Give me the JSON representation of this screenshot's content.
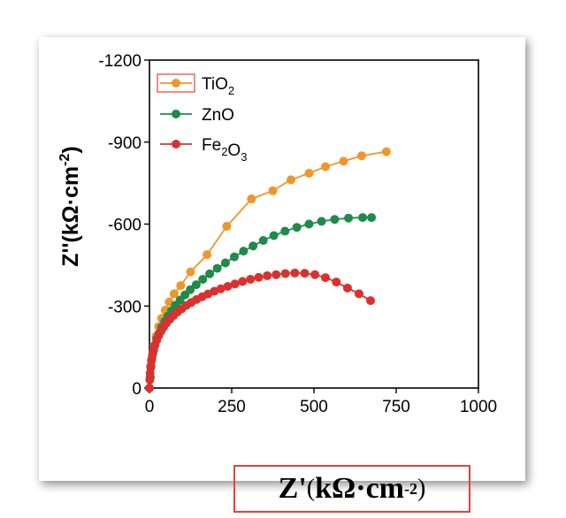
{
  "chart_data": {
    "type": "scatter",
    "title": "",
    "xlabel": "Z'(kΩ·cm⁻²)",
    "ylabel": "Z''(kΩ·cm⁻²)",
    "xlim": [
      0,
      1000
    ],
    "ylim": [
      0,
      -1200
    ],
    "x_ticks": [
      "0",
      "250",
      "500",
      "750",
      "1000"
    ],
    "y_ticks": [
      "0",
      "-300",
      "-600",
      "-900",
      "-1200"
    ],
    "grid": false,
    "legend_position": "top-left",
    "series": [
      {
        "name": "TiO2",
        "color": "#f0962a",
        "x": [
          0,
          3,
          5,
          9,
          14,
          20,
          28,
          37,
          48,
          60,
          75,
          95,
          125,
          175,
          235,
          310,
          375,
          430,
          485,
          535,
          590,
          645,
          720
        ],
        "y": [
          0,
          -40,
          -80,
          -120,
          -155,
          -190,
          -225,
          -255,
          -285,
          -315,
          -345,
          -375,
          -425,
          -488,
          -592,
          -692,
          -722,
          -762,
          -786,
          -810,
          -830,
          -850,
          -865
        ]
      },
      {
        "name": "ZnO",
        "color": "#1f8a4a",
        "x": [
          0,
          2,
          4,
          7,
          11,
          16,
          22,
          29,
          37,
          46,
          56,
          67,
          79,
          93,
          108,
          124,
          142,
          162,
          183,
          206,
          231,
          258,
          286,
          315,
          346,
          378,
          412,
          448,
          485,
          523,
          563,
          605,
          648,
          675
        ],
        "y": [
          0,
          -40,
          -75,
          -105,
          -130,
          -155,
          -180,
          -200,
          -222,
          -243,
          -263,
          -283,
          -303,
          -322,
          -341,
          -360,
          -378,
          -398,
          -418,
          -438,
          -458,
          -480,
          -501,
          -520,
          -540,
          -558,
          -574,
          -588,
          -600,
          -610,
          -617,
          -622,
          -624,
          -624
        ]
      },
      {
        "name": "Fe2O3",
        "color": "#d9322e",
        "x": [
          0,
          1,
          2,
          4,
          6,
          9,
          13,
          17,
          22,
          28,
          35,
          43,
          52,
          62,
          73,
          85,
          98,
          112,
          127,
          143,
          160,
          178,
          197,
          217,
          238,
          260,
          283,
          307,
          332,
          358,
          385,
          413,
          442,
          472,
          503,
          535,
          568,
          602,
          637,
          672
        ],
        "y": [
          0,
          -30,
          -55,
          -80,
          -100,
          -120,
          -140,
          -158,
          -175,
          -192,
          -208,
          -223,
          -238,
          -252,
          -265,
          -278,
          -290,
          -302,
          -313,
          -324,
          -334,
          -344,
          -354,
          -363,
          -372,
          -381,
          -390,
          -398,
          -405,
          -411,
          -415,
          -419,
          -421,
          -420,
          -415,
          -404,
          -388,
          -366,
          -345,
          -320
        ]
      }
    ]
  }
}
